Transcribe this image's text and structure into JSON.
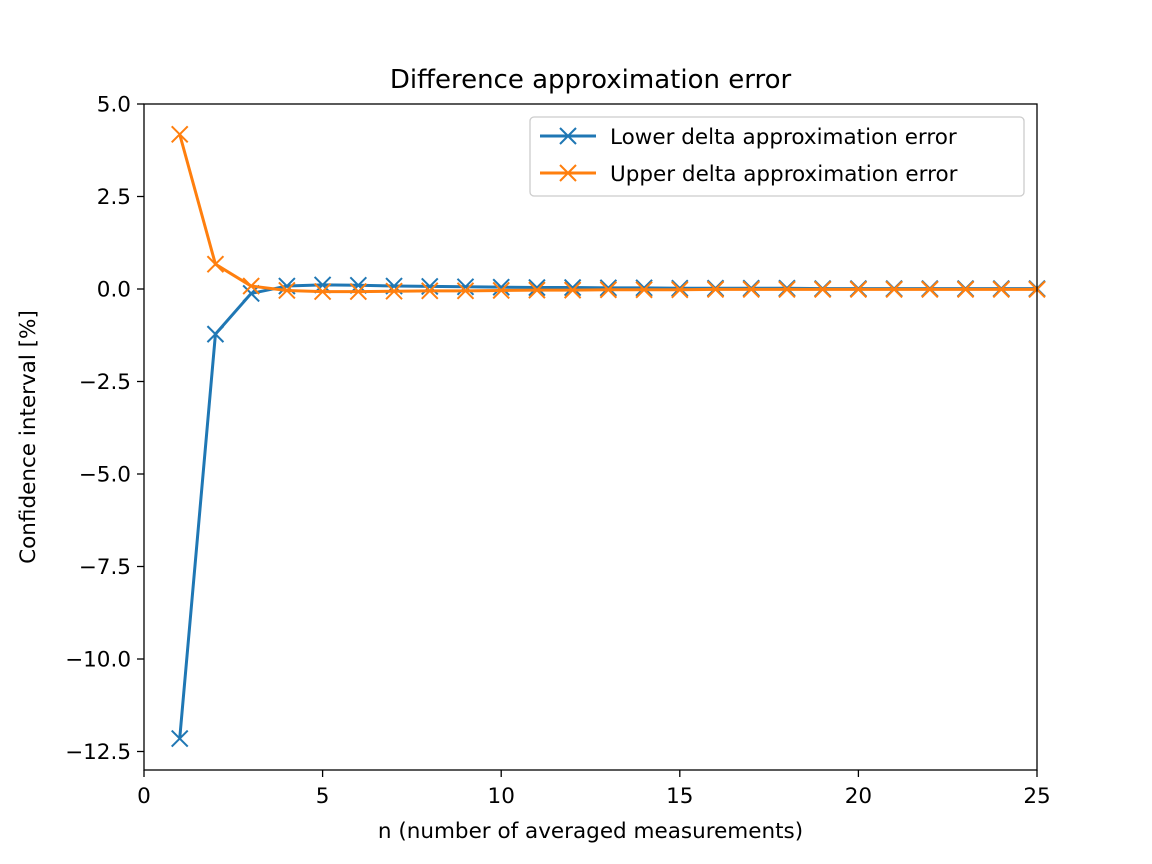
{
  "chart_data": {
    "type": "line",
    "title": "Difference approximation error",
    "xlabel": "n (number of averaged measurements)",
    "ylabel": "Confidence interval [%]",
    "xlim": [
      0,
      25
    ],
    "ylim": [
      -13.0,
      5.0
    ],
    "x_ticks": [
      0,
      5,
      10,
      15,
      20,
      25
    ],
    "x_tick_labels": [
      "0",
      "5",
      "10",
      "15",
      "20",
      "25"
    ],
    "y_ticks": [
      5.0,
      2.5,
      0.0,
      -2.5,
      -5.0,
      -7.5,
      -10.0,
      -12.5
    ],
    "y_tick_labels": [
      "5.0",
      "2.5",
      "0.0",
      "−2.5",
      "−5.0",
      "−7.5",
      "−10.0",
      "−12.5"
    ],
    "grid": false,
    "legend_position": "upper right",
    "x": [
      1,
      2,
      3,
      4,
      5,
      6,
      7,
      8,
      9,
      10,
      11,
      12,
      13,
      14,
      15,
      16,
      17,
      18,
      19,
      20,
      21,
      22,
      23,
      24,
      25
    ],
    "series": [
      {
        "name": "Lower delta approximation error",
        "color": "#1f77b4",
        "marker": "x",
        "values": [
          -12.15,
          -1.22,
          -0.12,
          0.08,
          0.11,
          0.1,
          0.08,
          0.07,
          0.06,
          0.05,
          0.04,
          0.04,
          0.03,
          0.03,
          0.02,
          0.02,
          0.02,
          0.02,
          0.01,
          0.01,
          0.01,
          0.01,
          0.01,
          0.01,
          0.01
        ]
      },
      {
        "name": "Upper delta approximation error",
        "color": "#ff7f0e",
        "marker": "x",
        "values": [
          4.18,
          0.67,
          0.08,
          -0.04,
          -0.07,
          -0.07,
          -0.06,
          -0.05,
          -0.05,
          -0.04,
          -0.03,
          -0.03,
          -0.02,
          -0.02,
          -0.02,
          -0.01,
          -0.01,
          -0.01,
          -0.01,
          -0.01,
          -0.01,
          -0.01,
          -0.01,
          -0.01,
          -0.01
        ]
      }
    ]
  }
}
